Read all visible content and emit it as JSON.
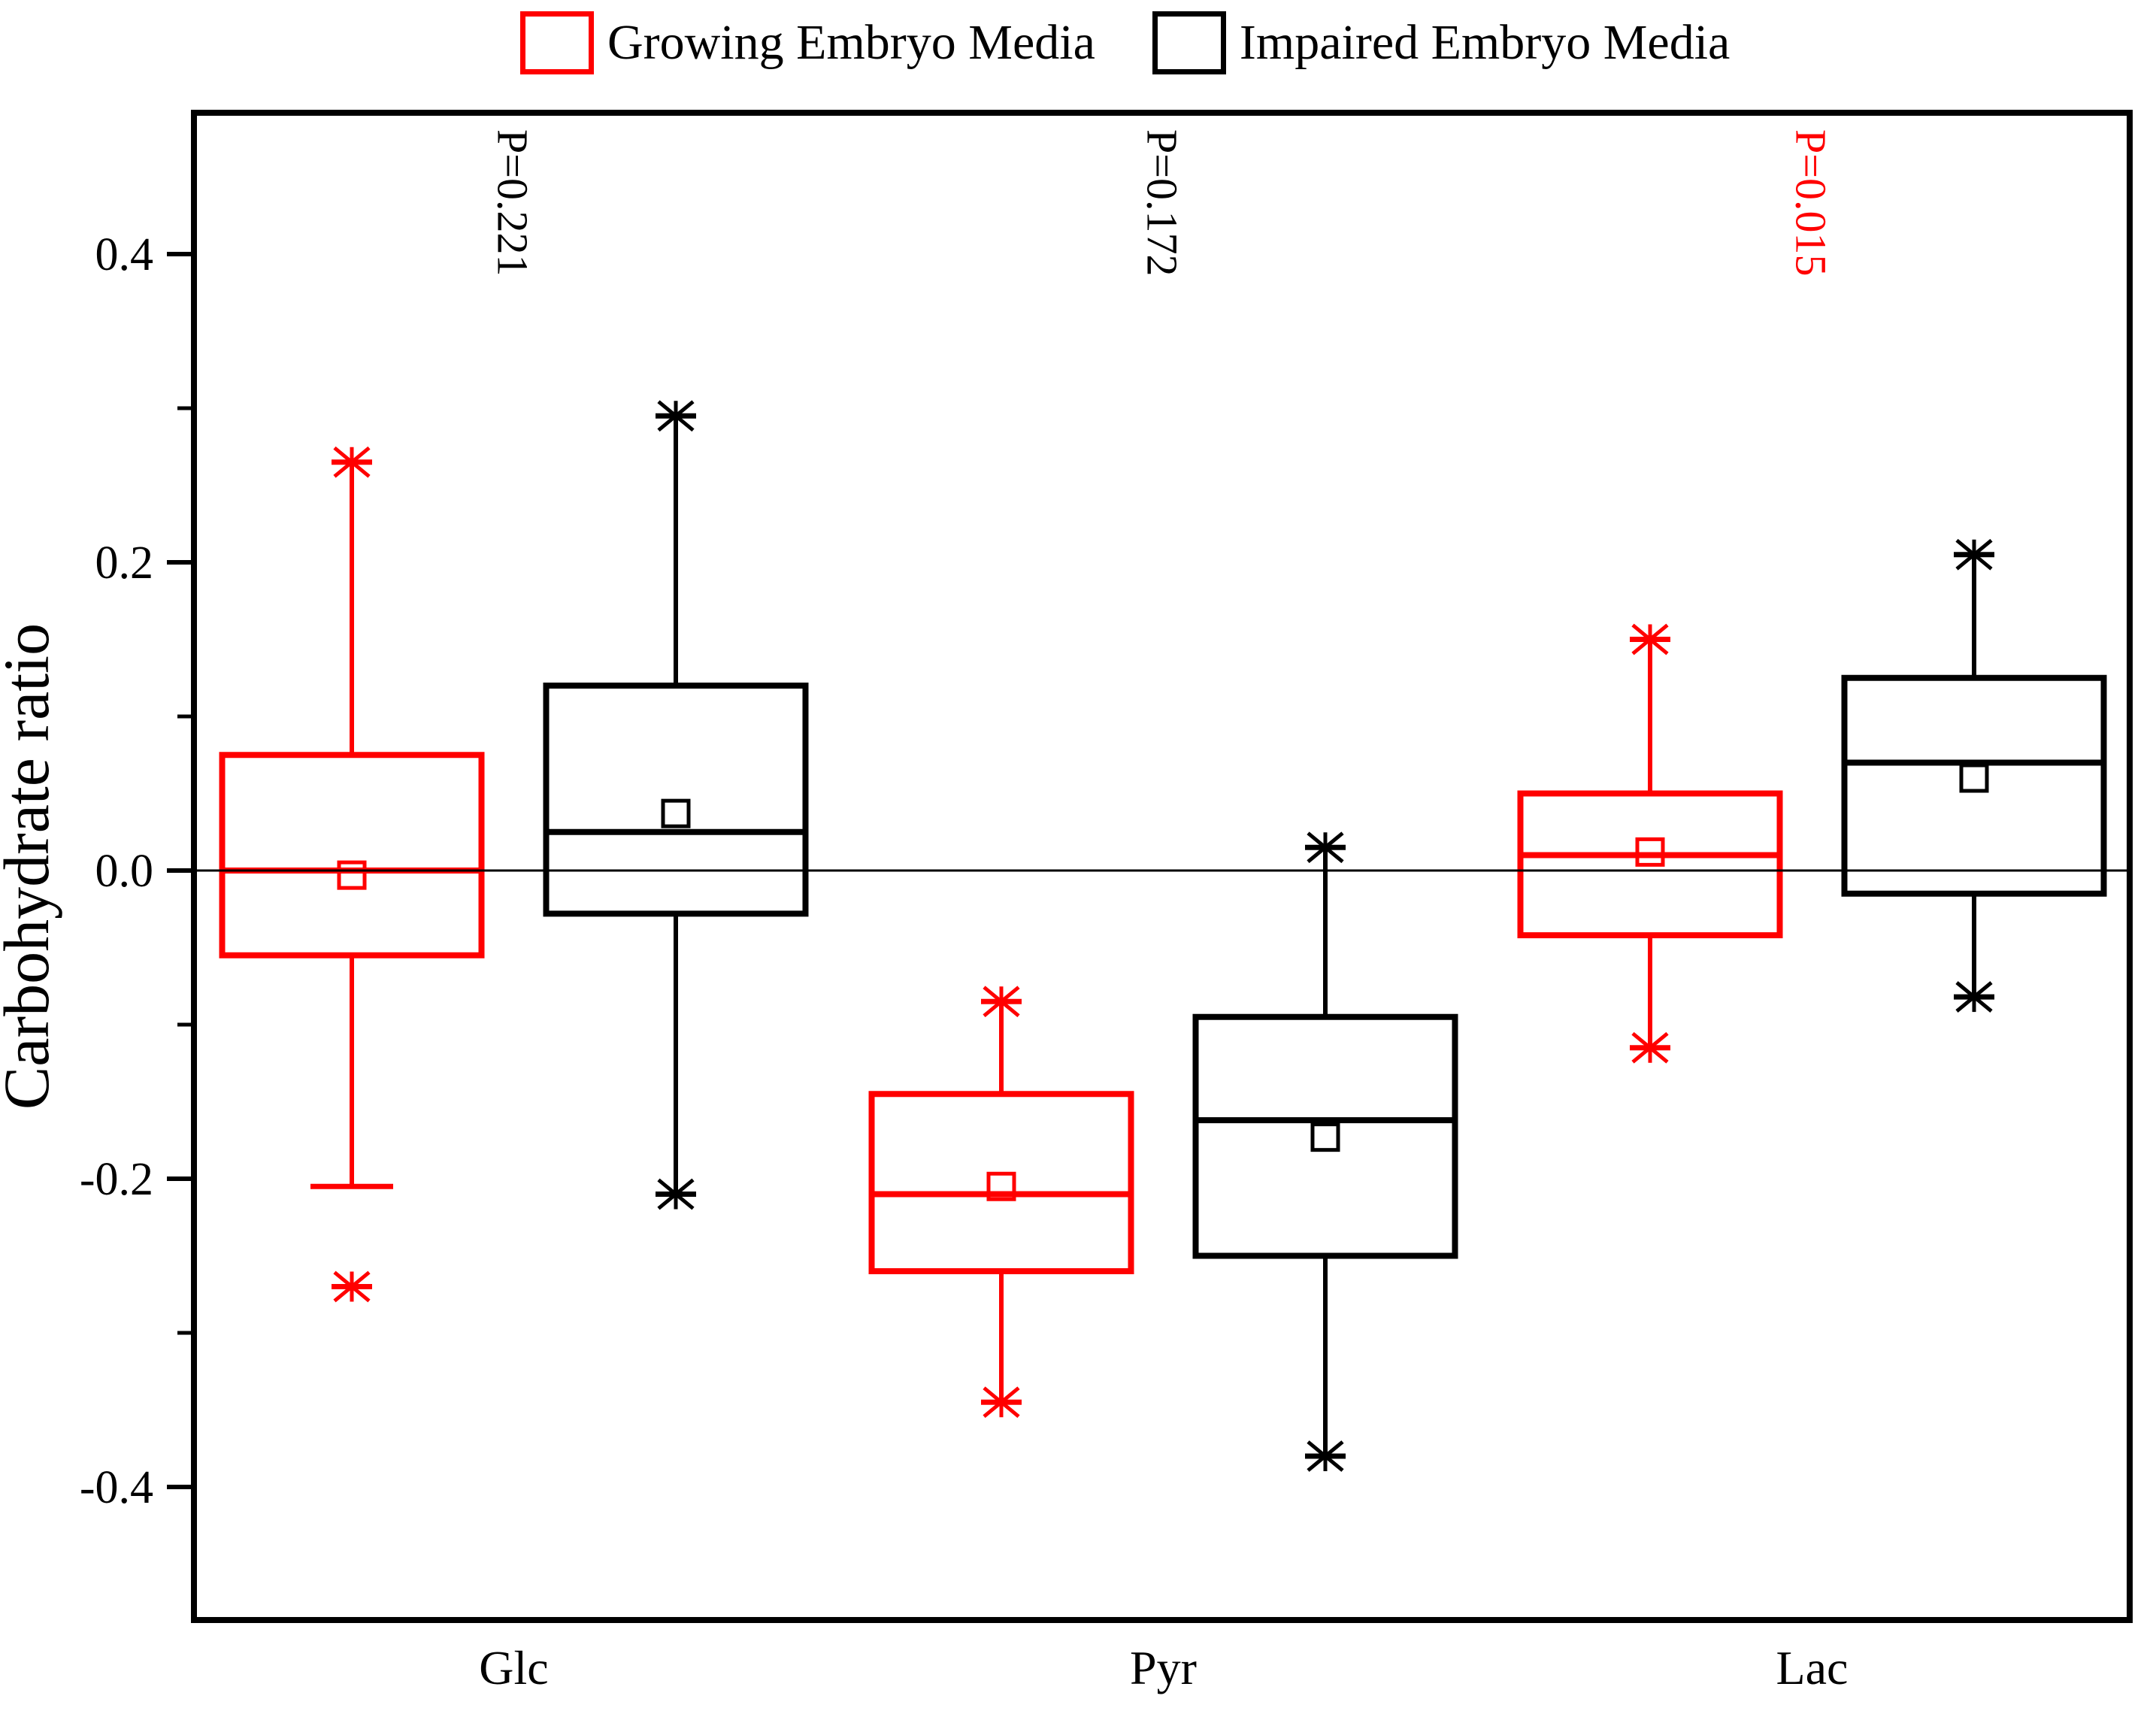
{
  "figure": {
    "background": "#ffffff",
    "frame_color": "#000000"
  },
  "legend": {
    "items": [
      {
        "label": "Growing Embryo Media",
        "color": "#ff0000"
      },
      {
        "label": "Impaired Embryo Media",
        "color": "#000000"
      }
    ]
  },
  "chart_data": {
    "type": "boxplot",
    "title": "",
    "xlabel": "",
    "ylabel": "Carbohydrate ratio",
    "categories": [
      "Glc",
      "Pyr",
      "Lac"
    ],
    "ylim": [
      -0.49,
      0.49
    ],
    "yticks_major": [
      0.4,
      0.2,
      0.0,
      -0.2,
      -0.4
    ],
    "yticks_minor": [
      0.3,
      0.1,
      -0.1,
      -0.3
    ],
    "grid": false,
    "zero_line": 0.0,
    "legend_position": "top",
    "series": [
      {
        "name": "Growing Embryo Media",
        "color": "#ff0000",
        "boxes": [
          {
            "category": "Glc",
            "q1": -0.055,
            "median": 0.0,
            "q3": 0.075,
            "mean": -0.003,
            "whisker_low": -0.205,
            "whisker_high": 0.265,
            "cap_low": true,
            "outliers": [
              -0.27
            ]
          },
          {
            "category": "Pyr",
            "q1": -0.26,
            "median": -0.21,
            "q3": -0.145,
            "mean": -0.205,
            "whisker_low": -0.345,
            "whisker_high": -0.085,
            "cap_low": false,
            "outliers": []
          },
          {
            "category": "Lac",
            "q1": -0.042,
            "median": 0.01,
            "q3": 0.05,
            "mean": 0.012,
            "whisker_low": -0.115,
            "whisker_high": 0.15,
            "cap_low": false,
            "outliers": []
          }
        ]
      },
      {
        "name": "Impaired Embryo Media",
        "color": "#000000",
        "boxes": [
          {
            "category": "Glc",
            "q1": -0.028,
            "median": 0.025,
            "q3": 0.12,
            "mean": 0.037,
            "whisker_low": -0.21,
            "whisker_high": 0.295,
            "cap_low": false,
            "outliers": []
          },
          {
            "category": "Pyr",
            "q1": -0.25,
            "median": -0.162,
            "q3": -0.095,
            "mean": -0.173,
            "whisker_low": -0.38,
            "whisker_high": 0.015,
            "cap_low": false,
            "outliers": []
          },
          {
            "category": "Lac",
            "q1": -0.015,
            "median": 0.07,
            "q3": 0.125,
            "mean": 0.06,
            "whisker_low": -0.082,
            "whisker_high": 0.205,
            "cap_low": false,
            "outliers": []
          }
        ]
      }
    ],
    "annotations": [
      {
        "text": "P=0.221",
        "category": "Glc",
        "color": "#000000"
      },
      {
        "text": "P=0.172",
        "category": "Pyr",
        "color": "#000000"
      },
      {
        "text": "P=0.015",
        "category": "Lac",
        "color": "#ff0000"
      }
    ]
  }
}
